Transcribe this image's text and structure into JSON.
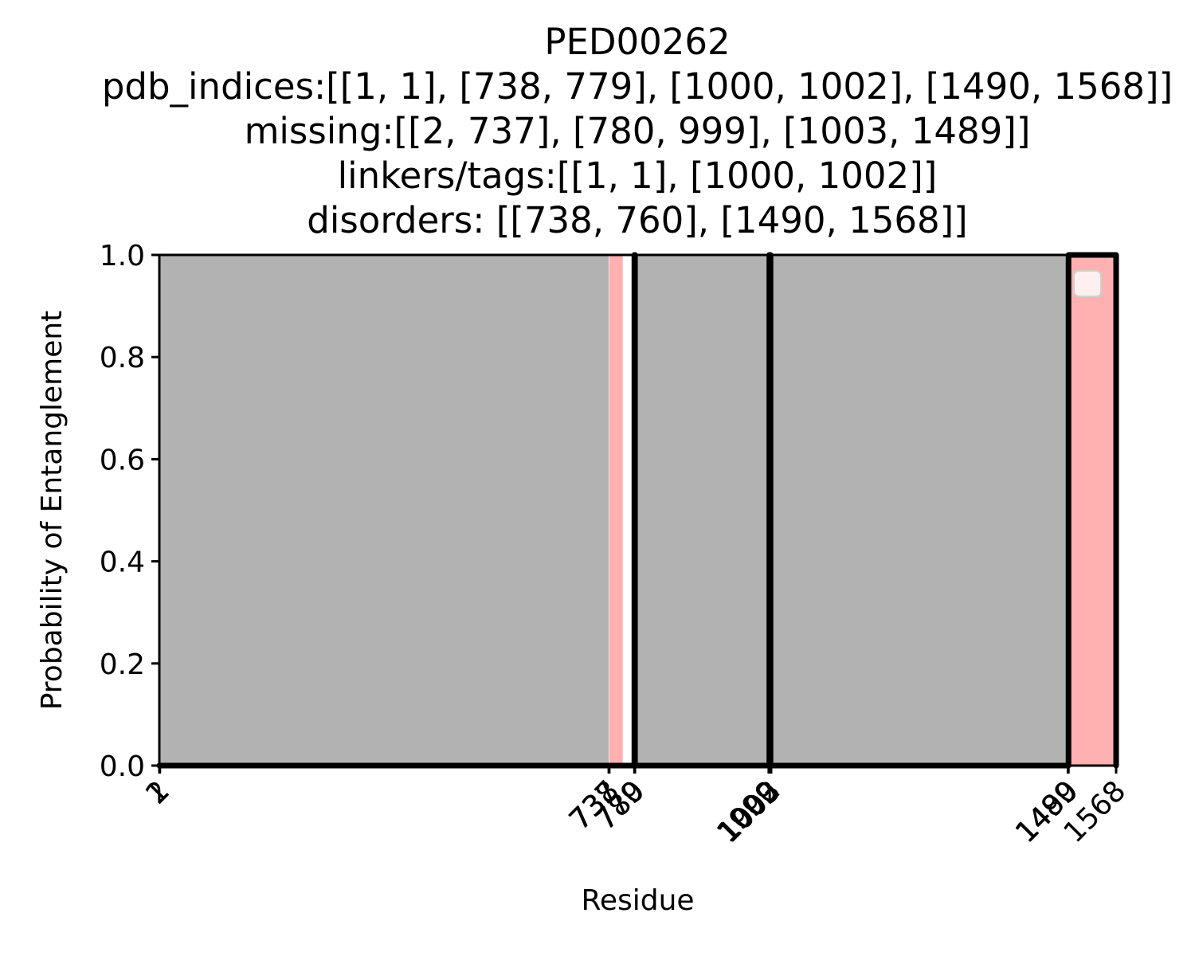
{
  "chart_data": {
    "type": "line",
    "title_lines": [
      "PED00262",
      "pdb_indices:[[1, 1], [738, 779], [1000, 1002], [1490, 1568]]",
      "missing:[[2, 737], [780, 999], [1003, 1489]]",
      "linkers/tags:[[1, 1], [1000, 1002]]",
      "disorders: [[738, 760], [1490, 1568]]"
    ],
    "xlabel": "Residue",
    "ylabel": "Probability of Entanglement",
    "xlim": [
      1,
      1568
    ],
    "ylim": [
      0,
      1
    ],
    "yticks": [
      0.0,
      0.2,
      0.4,
      0.6,
      0.8,
      1.0
    ],
    "ytick_labels": [
      "0.0",
      "0.2",
      "0.4",
      "0.6",
      "0.8",
      "1.0"
    ],
    "xticks": [
      1,
      2,
      737,
      738,
      779,
      780,
      999,
      1000,
      1002,
      1003,
      1489,
      1490,
      1568
    ],
    "xtick_labels": [
      "1",
      "2",
      "737",
      "738",
      "779",
      "780",
      "999",
      "1000",
      "1002",
      "1003",
      "1489",
      "1490",
      "1568"
    ],
    "missing_regions": [
      [
        2,
        737
      ],
      [
        780,
        999
      ],
      [
        1003,
        1489
      ]
    ],
    "disorder_regions": [
      [
        738,
        760
      ],
      [
        1490,
        1568
      ]
    ],
    "series": [
      {
        "x": [
          1,
          1,
          737,
          737,
          738,
          738,
          779,
          779,
          780,
          780,
          999,
          999,
          1000,
          1000,
          1002,
          1002,
          1003,
          1003,
          1489,
          1489,
          1490,
          1490,
          1568,
          1568
        ],
        "y": [
          0,
          0,
          0,
          0,
          0,
          0,
          0,
          1,
          1,
          0,
          0,
          0,
          0,
          1,
          1,
          0,
          0,
          0,
          0,
          0,
          0,
          1,
          1,
          0
        ]
      }
    ],
    "colors": {
      "missing": "#b2b2b2",
      "disorder": "#ffb0b0",
      "line": "#000000",
      "legend_box": "#fff0f0"
    },
    "legend": {
      "placement": "upper right",
      "entries": []
    },
    "grid": false
  }
}
